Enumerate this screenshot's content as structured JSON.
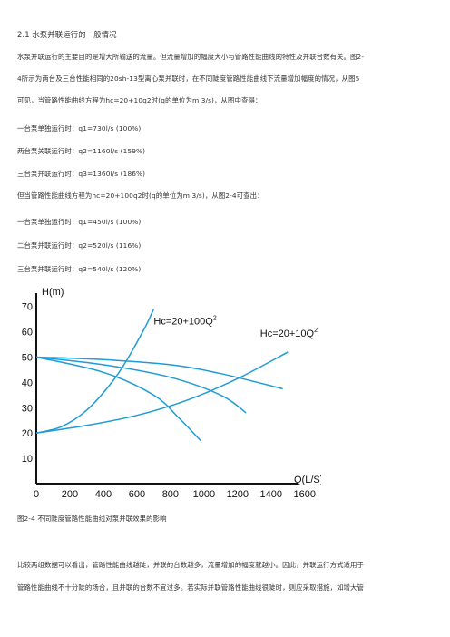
{
  "heading": "2.1 水泵并联运行的一般情况",
  "paragraph1": [
    "水泵并联运行的主要目的是增大所输送的流量。但流量增加的幅度大小与管路性能曲线的特性及并联台数有关。图2-",
    "4所示为两台及三台性能相同的20sh-13型离心泵并联时，在不同陡度管路性能曲线下流量增加幅度的情况，从图5",
    "可见，当管路性能曲线方程为hc=20+10q2时(q的单位为m 3/s)，从图中查得："
  ],
  "case1": [
    "一台泵单独运行时：q1=730l/s (100%)",
    "两台泵关联运行时：q2=1160l/s (159%)",
    "三台泵并联运行时：q3=1360l/s (186%)"
  ],
  "paragraph2": "但当管路性能曲线方程为hc=20+100q2时(q的单位为m 3/s)，从图2-4可查出：",
  "case2": [
    "一台泵单独运行时：q1=450l/s (100%)",
    "二台泵并联运行时：q2=520l/s (116%)",
    "三台泵并联运行时：q3=540l/s (120%)"
  ],
  "chart_data": {
    "type": "line",
    "ylabel": "H(m)",
    "xlabel": "Q(L/S)",
    "x_ticks": [
      0,
      200,
      400,
      600,
      800,
      1000,
      1200,
      1400,
      1600
    ],
    "y_ticks": [
      10,
      20,
      30,
      40,
      50,
      60,
      70
    ],
    "xlim": [
      0,
      1650
    ],
    "ylim": [
      0,
      76
    ],
    "annotations": [
      {
        "label": "Hc=20+100Q",
        "sup": "2",
        "x": 700,
        "y": 63
      },
      {
        "label": "Hc=20+10Q",
        "sup": "2",
        "x": 1335,
        "y": 58
      }
    ],
    "series": [
      {
        "points": [
          [
            0,
            20
          ],
          [
            150,
            22.5
          ],
          [
            300,
            29
          ],
          [
            450,
            40
          ],
          [
            550,
            50
          ],
          [
            650,
            62
          ],
          [
            700,
            69
          ]
        ]
      },
      {
        "points": [
          [
            0,
            20
          ],
          [
            300,
            23
          ],
          [
            600,
            27
          ],
          [
            900,
            33
          ],
          [
            1200,
            41.5
          ],
          [
            1500,
            52
          ]
        ]
      },
      {
        "points": [
          [
            0,
            50
          ],
          [
            400,
            44
          ],
          [
            700,
            35
          ],
          [
            850,
            26
          ],
          [
            980,
            17
          ]
        ]
      },
      {
        "points": [
          [
            0,
            50
          ],
          [
            400,
            47
          ],
          [
            800,
            42
          ],
          [
            1100,
            35
          ],
          [
            1250,
            28
          ]
        ]
      },
      {
        "points": [
          [
            0,
            50
          ],
          [
            400,
            49
          ],
          [
            800,
            47
          ],
          [
            1100,
            43.5
          ],
          [
            1470,
            37.5
          ]
        ]
      }
    ]
  },
  "caption": "图2-4 不同陡度管路性能曲线对泵并联效果的影响",
  "paragraph3": [
    "比较两组数据可以看出，管路性能曲线越陡，并联的台数越多，流量增加的幅度就越小。因此，并联运行方式适用于",
    "管路性能曲线不十分陡的场合，且并联的台数不宜过多。若实际并联管路性能曲线很陡时，则应采取措施，如增大管"
  ]
}
